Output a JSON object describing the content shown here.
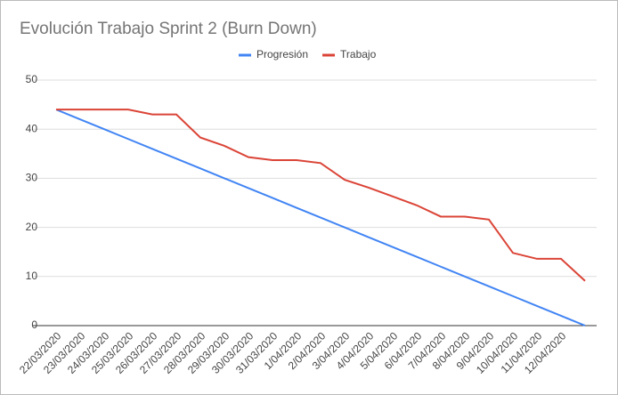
{
  "chart_data": {
    "type": "line",
    "title": "Evolución Trabajo Sprint 2 (Burn Down)",
    "categories": [
      "22/03/2020",
      "23/03/2020",
      "24/03/2020",
      "25/03/2020",
      "26/03/2020",
      "27/03/2020",
      "28/03/2020",
      "29/03/2020",
      "30/03/2020",
      "31/03/2020",
      "1/04/2020",
      "2/04/2020",
      "3/04/2020",
      "4/04/2020",
      "5/04/2020",
      "6/04/2020",
      "7/04/2020",
      "8/04/2020",
      "9/04/2020",
      "10/04/2020",
      "11/04/2020",
      "12/04/2020",
      null
    ],
    "series": [
      {
        "name": "Progresión",
        "color": "#4285f4",
        "values": [
          44,
          42,
          40,
          38,
          36,
          34,
          32,
          30,
          28,
          26,
          24,
          22,
          20,
          18,
          16,
          14,
          12,
          10,
          8,
          6,
          4,
          2,
          0
        ]
      },
      {
        "name": "Trabajo",
        "color": "#db4437",
        "values": [
          44,
          44,
          44,
          44,
          43,
          43,
          38.3,
          36.6,
          34.3,
          33.7,
          33.7,
          33.1,
          29.7,
          28.1,
          26.3,
          24.5,
          22.2,
          22.2,
          21.6,
          14.8,
          13.6,
          13.6,
          9.1
        ]
      }
    ],
    "ylim": [
      0,
      50
    ],
    "yticks": [
      0,
      10,
      20,
      30,
      40,
      50
    ],
    "grid": true,
    "legend": "top"
  }
}
